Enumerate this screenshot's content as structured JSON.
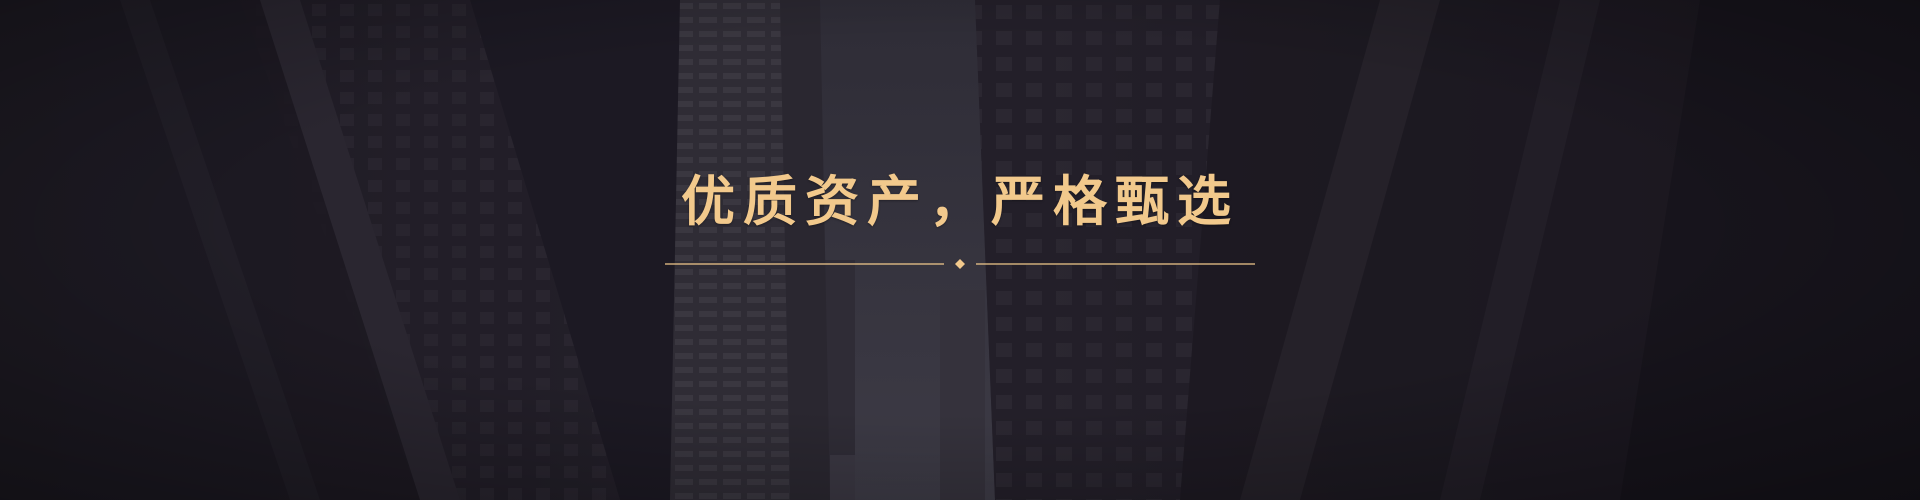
{
  "banner": {
    "headline": "优质资产，严格甄选",
    "background": "dark-cityscape-skyscrapers",
    "colors": {
      "accent": "#f2c98c",
      "background": "#1c1923",
      "sky": "#3b3944"
    },
    "divider_icon": "diamond-icon"
  }
}
